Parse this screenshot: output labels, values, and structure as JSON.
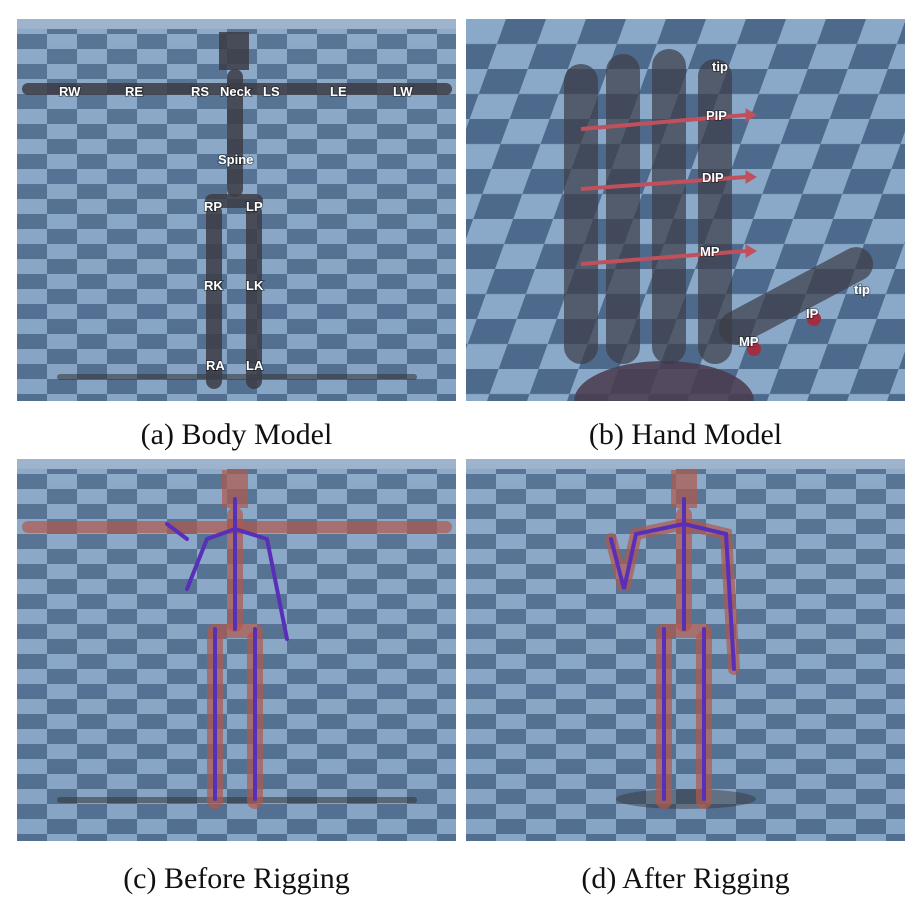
{
  "panels": [
    {
      "id": "a",
      "caption": "(a) Body Model",
      "joint_labels": [
        "RW",
        "RE",
        "RS",
        "Neck",
        "LS",
        "LE",
        "LW",
        "Spine",
        "RP",
        "LP",
        "RK",
        "LK",
        "RA",
        "LA"
      ]
    },
    {
      "id": "b",
      "caption": "(b) Hand Model",
      "finger_labels": [
        "tip",
        "PIP",
        "DIP",
        "MP"
      ],
      "thumb_labels": [
        "tip",
        "IP",
        "MP"
      ]
    },
    {
      "id": "c",
      "caption": "(c) Before Rigging"
    },
    {
      "id": "d",
      "caption": "(d) After Rigging"
    }
  ],
  "colors": {
    "floor_dark": "#4d6a8c",
    "floor_light": "#8aa8c8",
    "sky": "#a9bcd0",
    "body_gray": "#3c3c44",
    "body_red": "#b0584c",
    "rig_purple": "#5a2fb8",
    "arrow_red": "#c0505c"
  }
}
